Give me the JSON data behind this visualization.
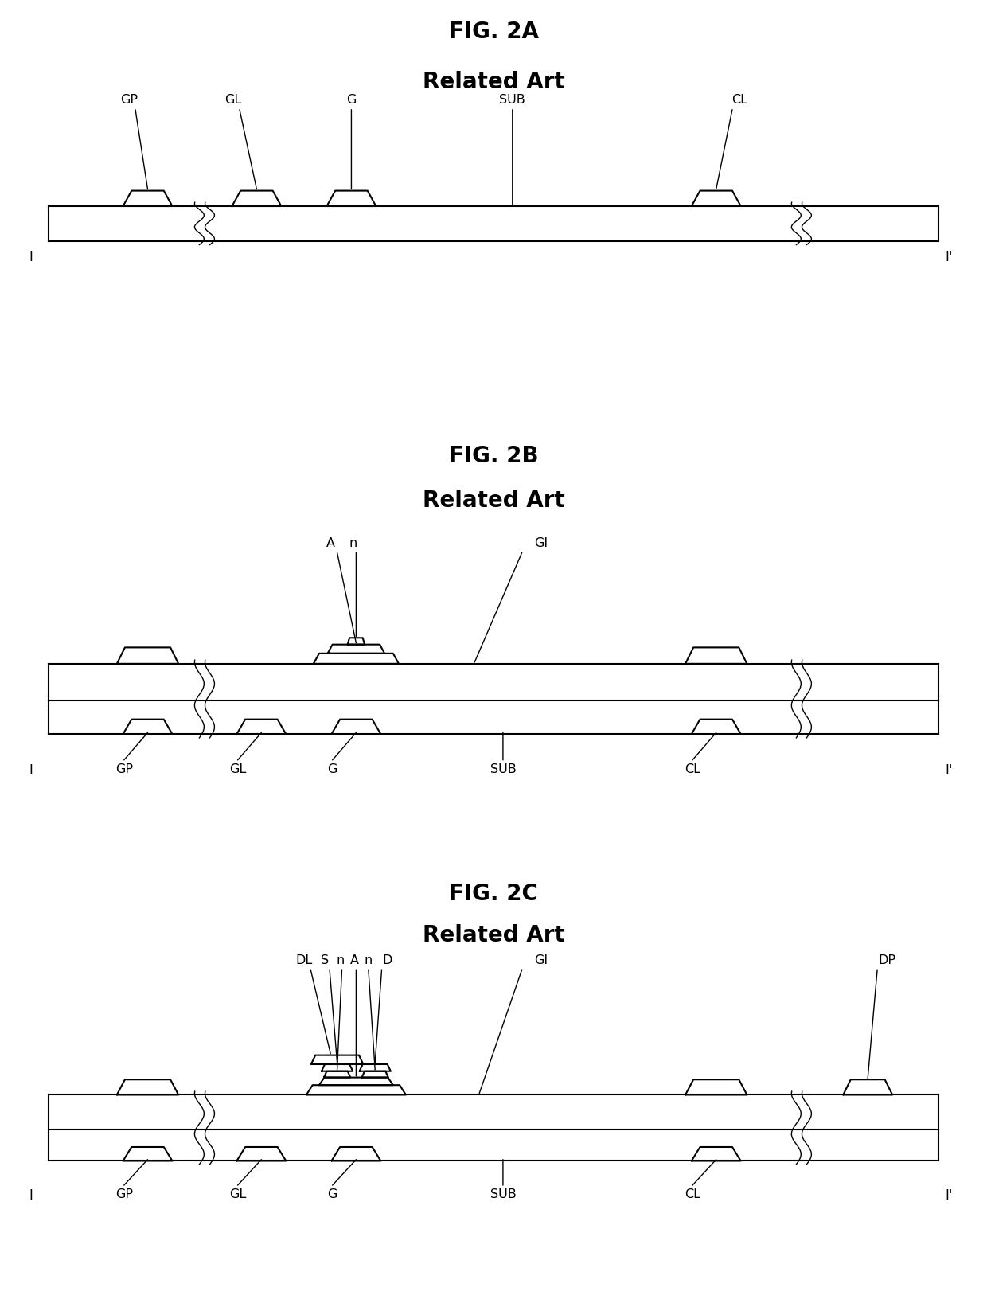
{
  "fig_title_a": "FIG. 2A",
  "fig_title_b": "FIG. 2B",
  "fig_title_c": "FIG. 2C",
  "subtitle": "Related Art",
  "bg_color": "#ffffff",
  "line_color": "#000000",
  "fig_title_fontsize": 20,
  "subtitle_fontsize": 20,
  "label_fontsize": 11.5,
  "lw_main": 1.5,
  "lw_thin": 1.0
}
